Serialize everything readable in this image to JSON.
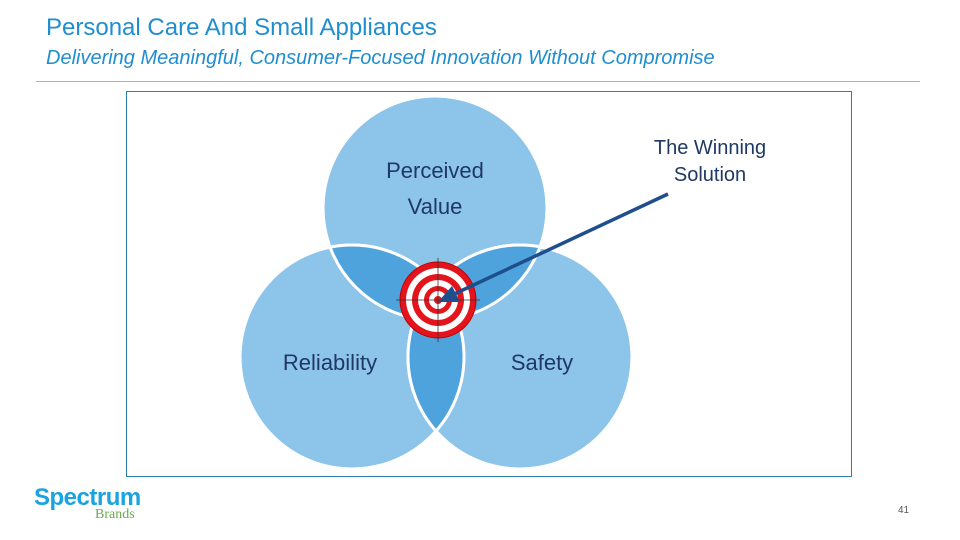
{
  "header": {
    "title": "Personal Care And Small Appliances",
    "subtitle": "Delivering Meaningful, Consumer-Focused Innovation Without Compromise"
  },
  "diagram": {
    "circles": [
      {
        "label_line1": "Perceived",
        "label_line2": "Value"
      },
      {
        "label": "Reliability"
      },
      {
        "label": "Safety"
      }
    ],
    "callout_line1": "The Winning",
    "callout_line2": "Solution",
    "colors": {
      "circle": "#8dc4e9",
      "overlap": "#4fa3dc",
      "target_red": "#e3141b",
      "arrow": "#1f4e8c",
      "text": "#1f3864"
    }
  },
  "footer": {
    "logo_word": "Spectrum",
    "logo_sub": "Brands",
    "page_number": "41"
  }
}
